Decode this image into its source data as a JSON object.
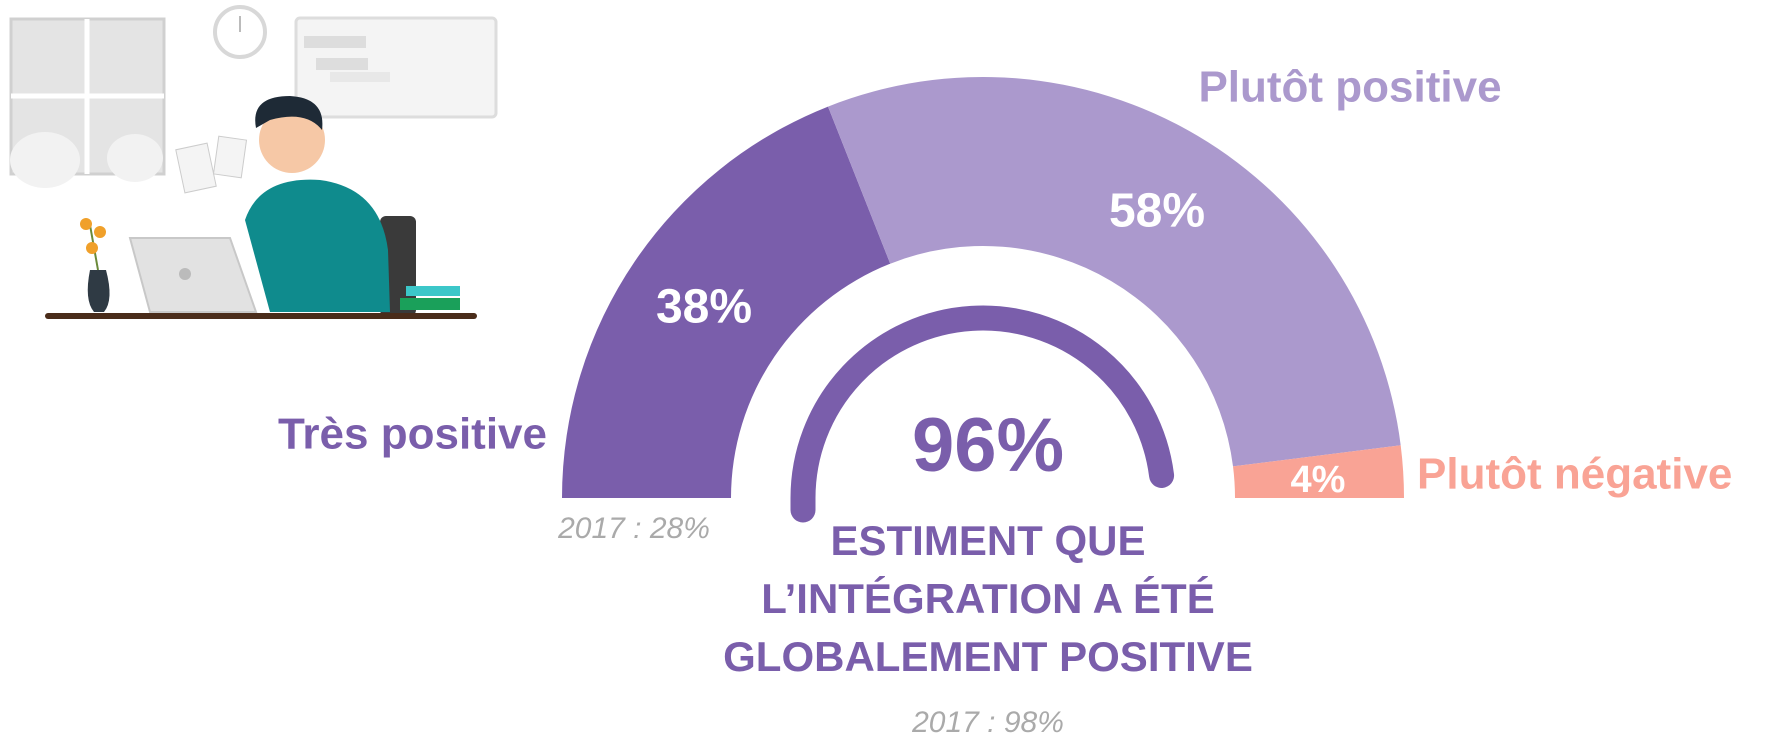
{
  "chart_data": {
    "type": "semi-donut",
    "categories": [
      "Très positive",
      "Plutôt positive",
      "Plutôt négative"
    ],
    "values": [
      38,
      58,
      4
    ],
    "value_labels": [
      "38%",
      "58%",
      "4%"
    ],
    "colors": [
      "#7a5eab",
      "#ab99cd",
      "#f9a395"
    ],
    "note": "2017 : 28%",
    "gauge": {
      "value": 96,
      "value_label": "96%",
      "color": "#7a5eab",
      "caption_lines": [
        "ESTIMENT QUE",
        "L’INTÉGRATION A ÉTÉ",
        "GLOBALEMENT POSITIVE"
      ],
      "note": "2017 : 98%"
    }
  }
}
